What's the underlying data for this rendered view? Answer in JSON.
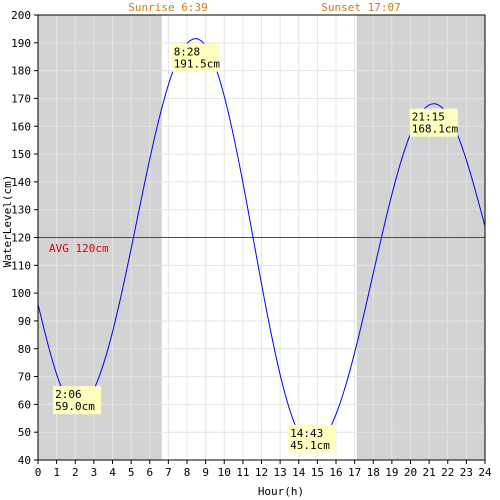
{
  "chart_data": {
    "type": "line",
    "title": "",
    "xlabel": "Hour(h)",
    "ylabel": "WaterLevel(cm)",
    "xlim": [
      0,
      24
    ],
    "ylim": [
      40,
      200
    ],
    "xticks": [
      0,
      1,
      2,
      3,
      4,
      5,
      6,
      7,
      8,
      9,
      10,
      11,
      12,
      13,
      14,
      15,
      16,
      17,
      18,
      19,
      20,
      21,
      22,
      23,
      24
    ],
    "yticks": [
      40,
      50,
      60,
      70,
      80,
      90,
      100,
      110,
      120,
      130,
      140,
      150,
      160,
      170,
      180,
      190,
      200
    ],
    "grid": true,
    "sunrise": {
      "label": "Sunrise 6:39",
      "hour": 6.65
    },
    "sunset": {
      "label": "Sunset 17:07",
      "hour": 17.117
    },
    "average": {
      "label": "AVG 120cm",
      "value": 120
    },
    "extrema": [
      {
        "time": "2:06",
        "hour": 2.1,
        "level": 59.0,
        "level_label": "59.0cm"
      },
      {
        "time": "8:28",
        "hour": 8.467,
        "level": 191.5,
        "level_label": "191.5cm"
      },
      {
        "time": "14:43",
        "hour": 14.717,
        "level": 45.1,
        "level_label": "45.1cm"
      },
      {
        "time": "21:15",
        "hour": 21.25,
        "level": 168.1,
        "level_label": "168.1cm"
      }
    ],
    "series": [
      {
        "start": {
          "hour": 0,
          "level": 96
        },
        "end": {
          "hour": 24,
          "level": 124
        }
      }
    ],
    "colors": {
      "night": "#d3d3d3",
      "day": "#ffffff",
      "grid": "#e4e4e4",
      "line": "#0000ff",
      "avg": "#ff0000",
      "annotation_bg": "#ffffc0",
      "sun_text": "#d07a10"
    }
  }
}
